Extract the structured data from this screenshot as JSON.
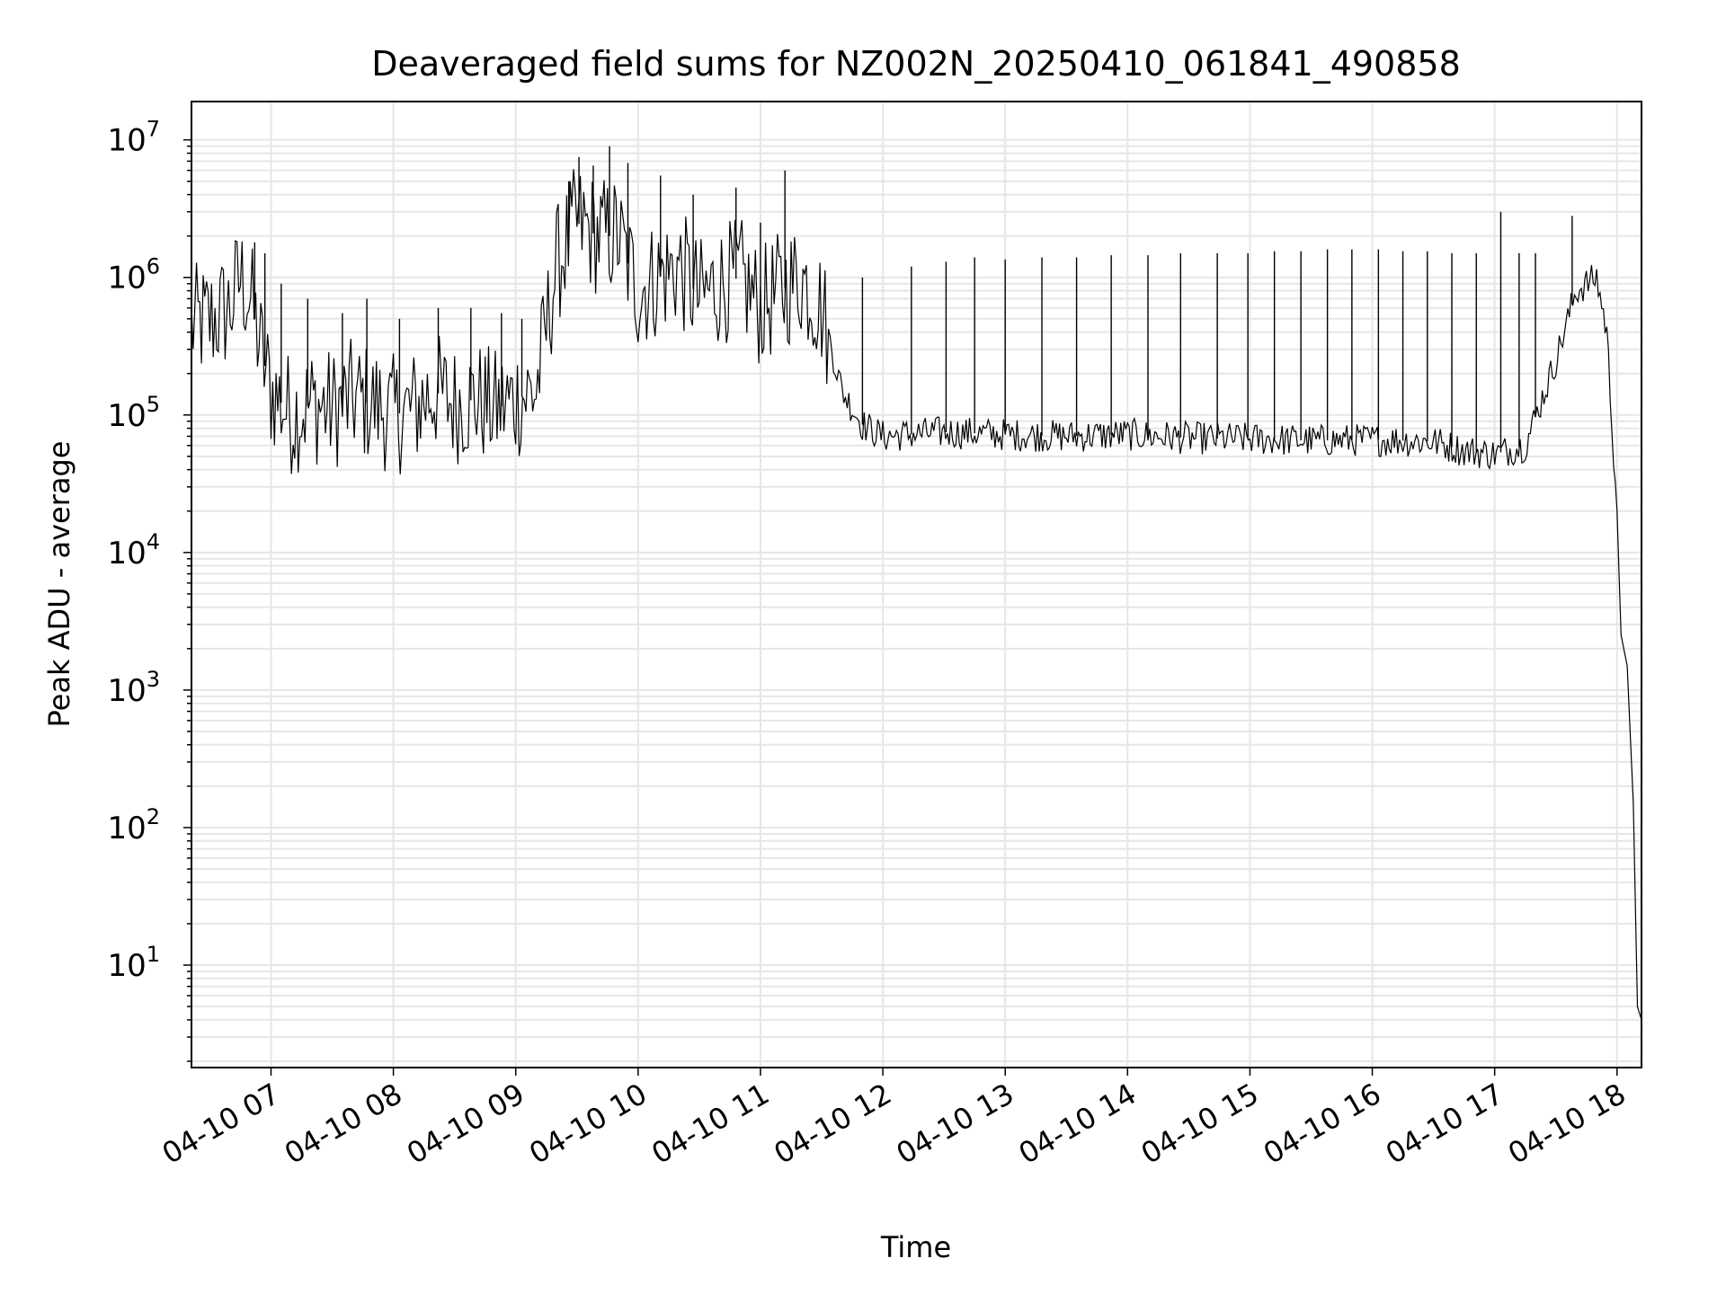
{
  "chart_data": {
    "type": "line",
    "title": "Deaveraged field sums for NZ002N_20250410_061841_490858",
    "xlabel": "Time",
    "ylabel": "Peak ADU - average",
    "yscale": "log",
    "ylim": [
      1.8,
      19000000
    ],
    "xlim": [
      "2025-04-10 06:21",
      "2025-04-10 18:12"
    ],
    "grid": true,
    "x_ticks": [
      {
        "t": "2025-04-10 07:00",
        "label": "04-10 07"
      },
      {
        "t": "2025-04-10 08:00",
        "label": "04-10 08"
      },
      {
        "t": "2025-04-10 09:00",
        "label": "04-10 09"
      },
      {
        "t": "2025-04-10 10:00",
        "label": "04-10 10"
      },
      {
        "t": "2025-04-10 11:00",
        "label": "04-10 11"
      },
      {
        "t": "2025-04-10 12:00",
        "label": "04-10 12"
      },
      {
        "t": "2025-04-10 13:00",
        "label": "04-10 13"
      },
      {
        "t": "2025-04-10 14:00",
        "label": "04-10 14"
      },
      {
        "t": "2025-04-10 15:00",
        "label": "04-10 15"
      },
      {
        "t": "2025-04-10 16:00",
        "label": "04-10 16"
      },
      {
        "t": "2025-04-10 17:00",
        "label": "04-10 17"
      },
      {
        "t": "2025-04-10 18:00",
        "label": "04-10 18"
      }
    ],
    "y_ticks": [
      {
        "value": 10,
        "base": "10",
        "exp": "1"
      },
      {
        "value": 100,
        "base": "10",
        "exp": "2"
      },
      {
        "value": 1000,
        "base": "10",
        "exp": "3"
      },
      {
        "value": 10000,
        "base": "10",
        "exp": "4"
      },
      {
        "value": 100000,
        "base": "10",
        "exp": "5"
      },
      {
        "value": 1000000,
        "base": "10",
        "exp": "6"
      },
      {
        "value": 10000000,
        "base": "10",
        "exp": "7"
      }
    ],
    "line_color": "#000000",
    "grid_color": "#e6e6e6",
    "series": [
      {
        "x": [
          "2025-04-10 06:21",
          "2025-04-10 06:30",
          "2025-04-10 06:40",
          "2025-04-10 06:45",
          "2025-04-10 06:50",
          "2025-04-10 06:55",
          "2025-04-10 07:00",
          "2025-04-10 07:10",
          "2025-04-10 07:20",
          "2025-04-10 07:30",
          "2025-04-10 07:40",
          "2025-04-10 07:50",
          "2025-04-10 08:00",
          "2025-04-10 08:10",
          "2025-04-10 08:20",
          "2025-04-10 08:30",
          "2025-04-10 08:40",
          "2025-04-10 08:50",
          "2025-04-10 09:00",
          "2025-04-10 09:10",
          "2025-04-10 09:20",
          "2025-04-10 09:30",
          "2025-04-10 09:40",
          "2025-04-10 09:50",
          "2025-04-10 10:00",
          "2025-04-10 10:10",
          "2025-04-10 10:20",
          "2025-04-10 10:30",
          "2025-04-10 10:40",
          "2025-04-10 10:50",
          "2025-04-10 11:00",
          "2025-04-10 11:10",
          "2025-04-10 11:20",
          "2025-04-10 11:30",
          "2025-04-10 11:40",
          "2025-04-10 11:50",
          "2025-04-10 12:00",
          "2025-04-10 12:30",
          "2025-04-10 13:00",
          "2025-04-10 13:30",
          "2025-04-10 14:00",
          "2025-04-10 14:30",
          "2025-04-10 15:00",
          "2025-04-10 15:30",
          "2025-04-10 16:00",
          "2025-04-10 16:30",
          "2025-04-10 16:45",
          "2025-04-10 17:00",
          "2025-04-10 17:15",
          "2025-04-10 17:30",
          "2025-04-10 17:40",
          "2025-04-10 17:50",
          "2025-04-10 17:55",
          "2025-04-10 18:00",
          "2025-04-10 18:02",
          "2025-04-10 18:05",
          "2025-04-10 18:08",
          "2025-04-10 18:10",
          "2025-04-10 18:12"
        ],
        "y": [
          450000,
          480000,
          600000,
          1000000,
          700000,
          300000,
          150000,
          100000,
          120000,
          110000,
          130000,
          120000,
          100000,
          110000,
          150000,
          120000,
          130000,
          110000,
          130000,
          150000,
          1200000,
          2500000,
          2000000,
          2000000,
          800000,
          1000000,
          1200000,
          700000,
          900000,
          1000000,
          600000,
          800000,
          1000000,
          600000,
          150000,
          85000,
          70000,
          75000,
          72000,
          70000,
          72000,
          68000,
          67000,
          65000,
          66000,
          64000,
          55000,
          52000,
          60000,
          250000,
          800000,
          1000000,
          400000,
          20000,
          2500,
          1500,
          150,
          5,
          4
        ]
      }
    ],
    "spikes": [
      [
        "2025-04-10 06:52",
        1800000
      ],
      [
        "2025-04-10 06:57",
        1500000
      ],
      [
        "2025-04-10 07:05",
        900000
      ],
      [
        "2025-04-10 07:18",
        700000
      ],
      [
        "2025-04-10 07:35",
        550000
      ],
      [
        "2025-04-10 07:47",
        700000
      ],
      [
        "2025-04-10 08:03",
        500000
      ],
      [
        "2025-04-10 08:22",
        600000
      ],
      [
        "2025-04-10 08:38",
        600000
      ],
      [
        "2025-04-10 08:53",
        550000
      ],
      [
        "2025-04-10 09:03",
        500000
      ],
      [
        "2025-04-10 09:26",
        5000000
      ],
      [
        "2025-04-10 09:31",
        7500000
      ],
      [
        "2025-04-10 09:38",
        6500000
      ],
      [
        "2025-04-10 09:46",
        9000000
      ],
      [
        "2025-04-10 09:55",
        6800000
      ],
      [
        "2025-04-10 10:11",
        5500000
      ],
      [
        "2025-04-10 10:27",
        4000000
      ],
      [
        "2025-04-10 10:48",
        4500000
      ],
      [
        "2025-04-10 11:00",
        2500000
      ],
      [
        "2025-04-10 11:12",
        6000000
      ],
      [
        "2025-04-10 11:50",
        1000000
      ],
      [
        "2025-04-10 12:14",
        1200000
      ],
      [
        "2025-04-10 12:31",
        1300000
      ],
      [
        "2025-04-10 12:45",
        1400000
      ],
      [
        "2025-04-10 13:00",
        1350000
      ],
      [
        "2025-04-10 13:18",
        1400000
      ],
      [
        "2025-04-10 13:35",
        1400000
      ],
      [
        "2025-04-10 13:52",
        1450000
      ],
      [
        "2025-04-10 14:10",
        1450000
      ],
      [
        "2025-04-10 14:26",
        1500000
      ],
      [
        "2025-04-10 14:44",
        1500000
      ],
      [
        "2025-04-10 14:59",
        1500000
      ],
      [
        "2025-04-10 15:12",
        1550000
      ],
      [
        "2025-04-10 15:25",
        1550000
      ],
      [
        "2025-04-10 15:38",
        1600000
      ],
      [
        "2025-04-10 15:50",
        1600000
      ],
      [
        "2025-04-10 16:03",
        1600000
      ],
      [
        "2025-04-10 16:15",
        1550000
      ],
      [
        "2025-04-10 16:27",
        1550000
      ],
      [
        "2025-04-10 16:39",
        1500000
      ],
      [
        "2025-04-10 16:51",
        1500000
      ],
      [
        "2025-04-10 17:03",
        3000000
      ],
      [
        "2025-04-10 17:12",
        1500000
      ],
      [
        "2025-04-10 17:20",
        1500000
      ],
      [
        "2025-04-10 17:38",
        2800000
      ]
    ]
  }
}
